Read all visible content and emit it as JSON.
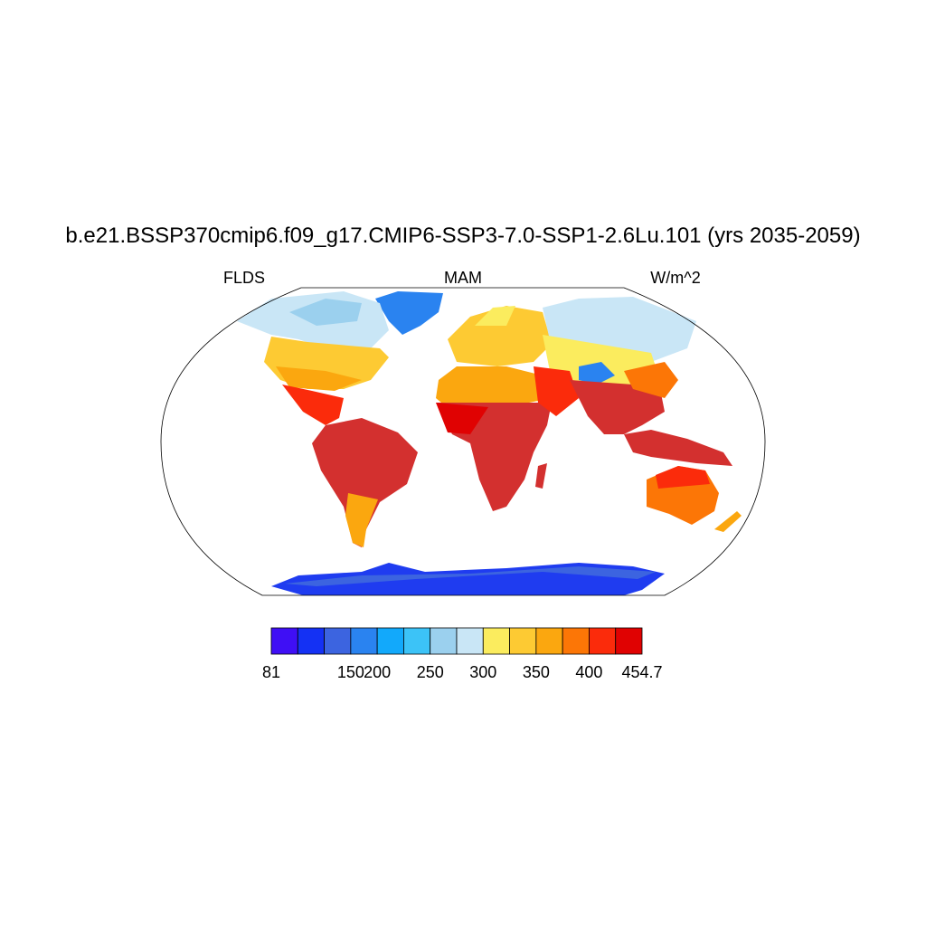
{
  "title": "b.e21.BSSP370cmip6.f09_g17.CMIP6-SSP3-7.0-SSP1-2.6Lu.101 (yrs 2035-2059)",
  "left_string": "FLDS",
  "center_string": "MAM",
  "right_string": "W/m^2",
  "colorbar": {
    "colors": [
      "#3f0ff5",
      "#1431f4",
      "#3c64e0",
      "#2a83f0",
      "#12a9fb",
      "#3cc3f7",
      "#9bd0ee",
      "#c9e6f6",
      "#fbec5e",
      "#fdca33",
      "#fba70f",
      "#fc7606",
      "#fb2b0b",
      "#e00202",
      "#d3302f"
    ],
    "levels": [
      81,
      100,
      125,
      150,
      200,
      225,
      250,
      275,
      300,
      325,
      350,
      375,
      400,
      425,
      454.7
    ],
    "ticks": [
      81,
      150,
      200,
      250,
      300,
      350,
      400,
      454.7
    ]
  }
}
